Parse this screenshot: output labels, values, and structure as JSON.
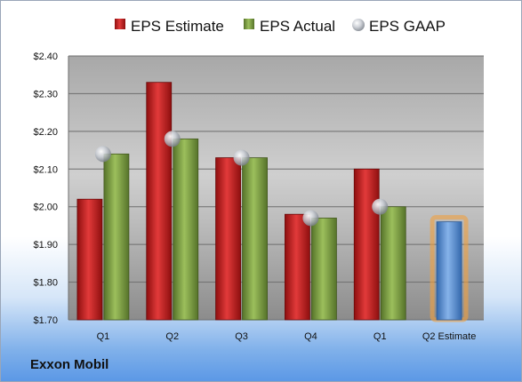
{
  "company": "Exxon Mobil",
  "chart_data": {
    "type": "bar",
    "categories": [
      "Q1",
      "Q2",
      "Q3",
      "Q4",
      "Q1",
      "Q2 Estimate"
    ],
    "series": [
      {
        "name": "EPS Estimate",
        "values": [
          2.02,
          2.33,
          2.13,
          1.98,
          2.1,
          null
        ],
        "color": "#cc1f1f"
      },
      {
        "name": "EPS Actual",
        "values": [
          2.14,
          2.18,
          2.13,
          1.97,
          2.0,
          null
        ],
        "color": "#7f9f3f"
      },
      {
        "name": "EPS GAAP",
        "values": [
          2.14,
          2.18,
          2.13,
          1.97,
          2.0,
          null
        ],
        "color": "#b8bcc4",
        "style": "marker"
      }
    ],
    "projection": {
      "category": "Q2 Estimate",
      "value": 1.96,
      "color": "#5b93d6",
      "glow": "#f0a040"
    },
    "ylim": [
      1.7,
      2.4
    ],
    "yticks": [
      1.7,
      1.8,
      1.9,
      2.0,
      2.1,
      2.2,
      2.3,
      2.4
    ],
    "ytick_labels": [
      "$1.70",
      "$1.80",
      "$1.90",
      "$2.00",
      "$2.10",
      "$2.20",
      "$2.30",
      "$2.40"
    ],
    "grid": true,
    "legend": "top"
  }
}
